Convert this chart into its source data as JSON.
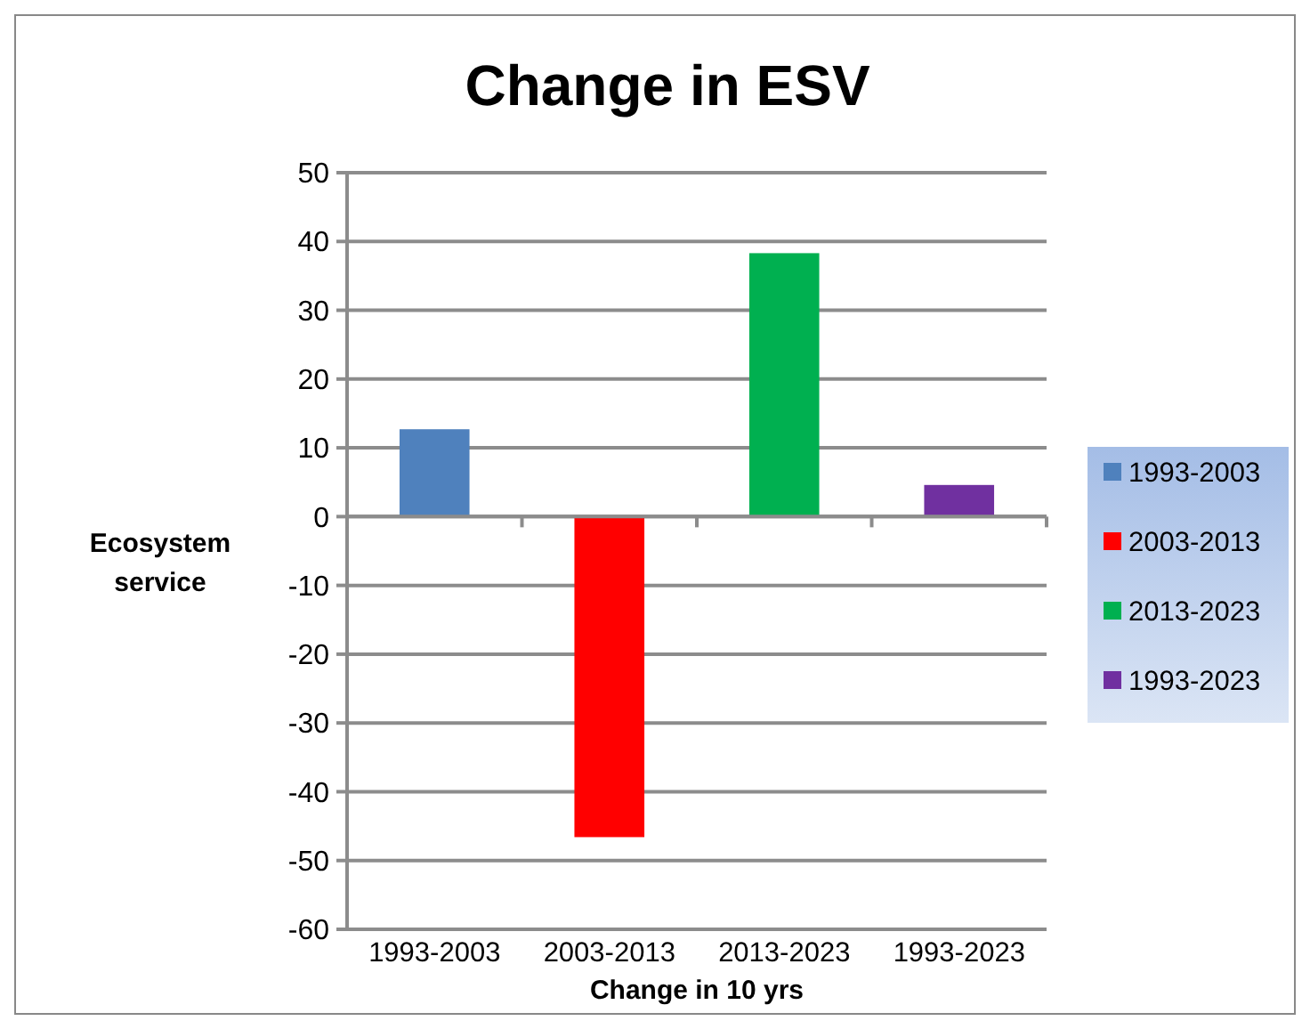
{
  "chart_data": {
    "type": "bar",
    "title": "Change in ESV",
    "xlabel": "Change in 10 yrs",
    "ylabel": "Ecosystem service",
    "categories": [
      "1993-2003",
      "2003-2013",
      "2013-2023",
      "1993-2023"
    ],
    "stacked": true,
    "series": [
      {
        "name": "1993-2003",
        "color": "#4f81bd",
        "values": [
          12.7,
          null,
          null,
          null
        ]
      },
      {
        "name": "2003-2013",
        "color": "#ff0000",
        "values": [
          null,
          -46.6,
          null,
          null
        ]
      },
      {
        "name": "2013-2023",
        "color": "#00b050",
        "values": [
          null,
          null,
          38.3,
          null
        ]
      },
      {
        "name": "1993-2023",
        "color": "#7030a0",
        "values": [
          null,
          null,
          null,
          4.6
        ]
      }
    ],
    "ylim": [
      -60,
      50
    ],
    "yticks": [
      -60,
      -50,
      -40,
      -30,
      -20,
      -10,
      0,
      10,
      20,
      30,
      40,
      50
    ],
    "grid": "y",
    "legend": "right"
  }
}
